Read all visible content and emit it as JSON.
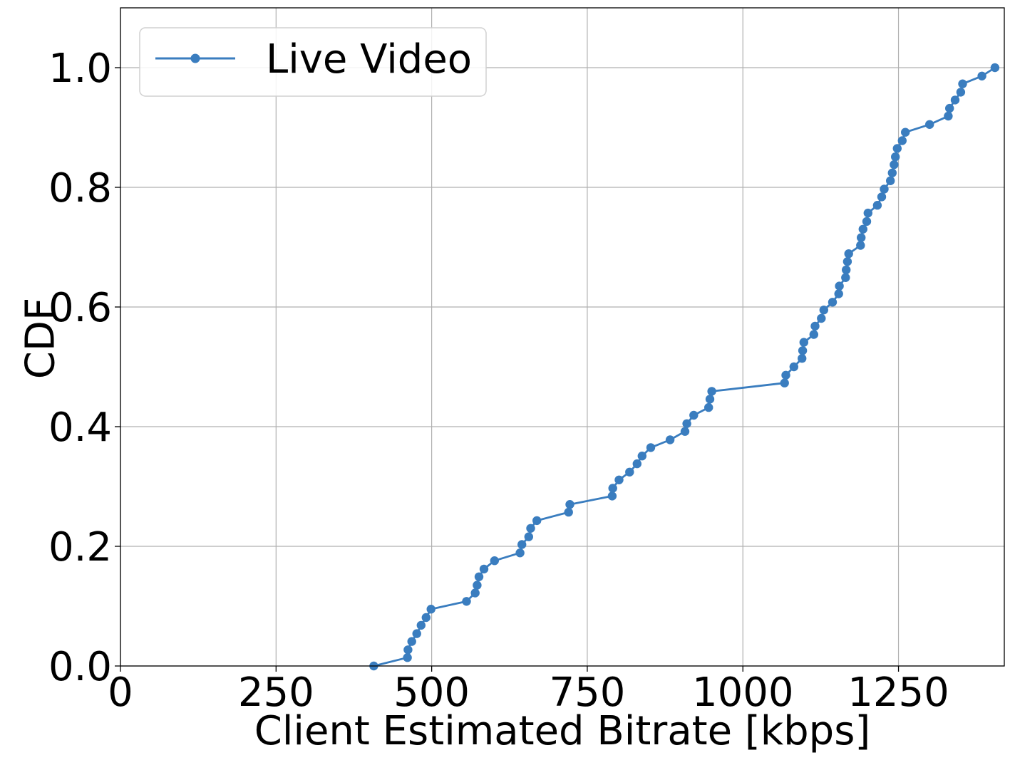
{
  "chart_data": {
    "type": "line",
    "xlabel": "Client Estimated Bitrate [kbps]",
    "ylabel": "CDF",
    "xlim": [
      0,
      1420
    ],
    "ylim": [
      0,
      1.1
    ],
    "xticks": [
      0,
      250,
      500,
      750,
      1000,
      1250
    ],
    "yticks": [
      0.0,
      0.2,
      0.4,
      0.6,
      0.8,
      1.0
    ],
    "xtick_labels": [
      "0",
      "250",
      "500",
      "750",
      "1000",
      "1250"
    ],
    "ytick_labels": [
      "0.0",
      "0.2",
      "0.4",
      "0.6",
      "0.8",
      "1.0"
    ],
    "grid": true,
    "legend_position": "upper-left",
    "series": [
      {
        "name": "Live Video",
        "color": "#3a7dbf",
        "marker": "circle",
        "points": [
          [
            407,
            0.0
          ],
          [
            461,
            0.014
          ],
          [
            462,
            0.027
          ],
          [
            468,
            0.041
          ],
          [
            476,
            0.054
          ],
          [
            483,
            0.068
          ],
          [
            491,
            0.081
          ],
          [
            499,
            0.095
          ],
          [
            556,
            0.108
          ],
          [
            570,
            0.122
          ],
          [
            573,
            0.135
          ],
          [
            576,
            0.149
          ],
          [
            584,
            0.162
          ],
          [
            601,
            0.176
          ],
          [
            642,
            0.189
          ],
          [
            645,
            0.203
          ],
          [
            656,
            0.216
          ],
          [
            659,
            0.23
          ],
          [
            669,
            0.243
          ],
          [
            720,
            0.257
          ],
          [
            722,
            0.27
          ],
          [
            790,
            0.284
          ],
          [
            791,
            0.297
          ],
          [
            801,
            0.311
          ],
          [
            818,
            0.324
          ],
          [
            830,
            0.338
          ],
          [
            838,
            0.351
          ],
          [
            852,
            0.365
          ],
          [
            883,
            0.378
          ],
          [
            907,
            0.392
          ],
          [
            910,
            0.405
          ],
          [
            921,
            0.419
          ],
          [
            945,
            0.432
          ],
          [
            947,
            0.446
          ],
          [
            950,
            0.459
          ],
          [
            1067,
            0.473
          ],
          [
            1069,
            0.486
          ],
          [
            1082,
            0.5
          ],
          [
            1095,
            0.514
          ],
          [
            1096,
            0.527
          ],
          [
            1098,
            0.541
          ],
          [
            1114,
            0.554
          ],
          [
            1116,
            0.568
          ],
          [
            1126,
            0.581
          ],
          [
            1130,
            0.595
          ],
          [
            1144,
            0.608
          ],
          [
            1154,
            0.622
          ],
          [
            1155,
            0.635
          ],
          [
            1165,
            0.649
          ],
          [
            1166,
            0.662
          ],
          [
            1168,
            0.676
          ],
          [
            1170,
            0.689
          ],
          [
            1189,
            0.703
          ],
          [
            1190,
            0.716
          ],
          [
            1193,
            0.73
          ],
          [
            1199,
            0.743
          ],
          [
            1201,
            0.757
          ],
          [
            1216,
            0.77
          ],
          [
            1223,
            0.784
          ],
          [
            1227,
            0.797
          ],
          [
            1237,
            0.811
          ],
          [
            1240,
            0.824
          ],
          [
            1243,
            0.838
          ],
          [
            1245,
            0.851
          ],
          [
            1248,
            0.865
          ],
          [
            1256,
            0.878
          ],
          [
            1261,
            0.892
          ],
          [
            1300,
            0.905
          ],
          [
            1330,
            0.919
          ],
          [
            1332,
            0.932
          ],
          [
            1341,
            0.946
          ],
          [
            1350,
            0.959
          ],
          [
            1353,
            0.973
          ],
          [
            1384,
            0.986
          ],
          [
            1405,
            1.0
          ]
        ]
      }
    ]
  }
}
